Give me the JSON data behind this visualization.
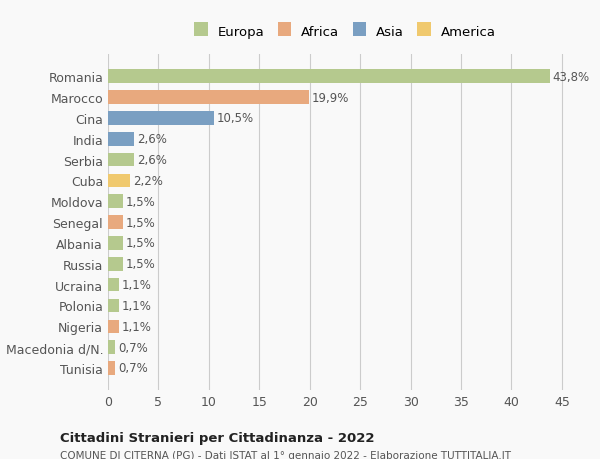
{
  "countries": [
    "Romania",
    "Marocco",
    "Cina",
    "India",
    "Serbia",
    "Cuba",
    "Moldova",
    "Senegal",
    "Albania",
    "Russia",
    "Ucraina",
    "Polonia",
    "Nigeria",
    "Macedonia d/N.",
    "Tunisia"
  ],
  "values": [
    43.8,
    19.9,
    10.5,
    2.6,
    2.6,
    2.2,
    1.5,
    1.5,
    1.5,
    1.5,
    1.1,
    1.1,
    1.1,
    0.7,
    0.7
  ],
  "labels": [
    "43,8%",
    "19,9%",
    "10,5%",
    "2,6%",
    "2,6%",
    "2,2%",
    "1,5%",
    "1,5%",
    "1,5%",
    "1,5%",
    "1,1%",
    "1,1%",
    "1,1%",
    "0,7%",
    "0,7%"
  ],
  "continents": [
    "Europa",
    "Africa",
    "Asia",
    "Asia",
    "Europa",
    "America",
    "Europa",
    "Africa",
    "Europa",
    "Europa",
    "Europa",
    "Europa",
    "Africa",
    "Europa",
    "Africa"
  ],
  "continent_colors": {
    "Europa": "#b5c98e",
    "Africa": "#e8a97e",
    "Asia": "#7a9fc2",
    "America": "#f0c96e"
  },
  "legend_entries": [
    "Europa",
    "Africa",
    "Asia",
    "America"
  ],
  "legend_colors": [
    "#b5c98e",
    "#e8a97e",
    "#7a9fc2",
    "#f0c96e"
  ],
  "xlim": [
    0,
    47
  ],
  "xticks": [
    0,
    5,
    10,
    15,
    20,
    25,
    30,
    35,
    40,
    45
  ],
  "title": "Cittadini Stranieri per Cittadinanza - 2022",
  "subtitle": "COMUNE DI CITERNA (PG) - Dati ISTAT al 1° gennaio 2022 - Elaborazione TUTTITALIA.IT",
  "background_color": "#f9f9f9",
  "grid_color": "#cccccc",
  "label_fontsize": 8.5,
  "bar_height": 0.65
}
